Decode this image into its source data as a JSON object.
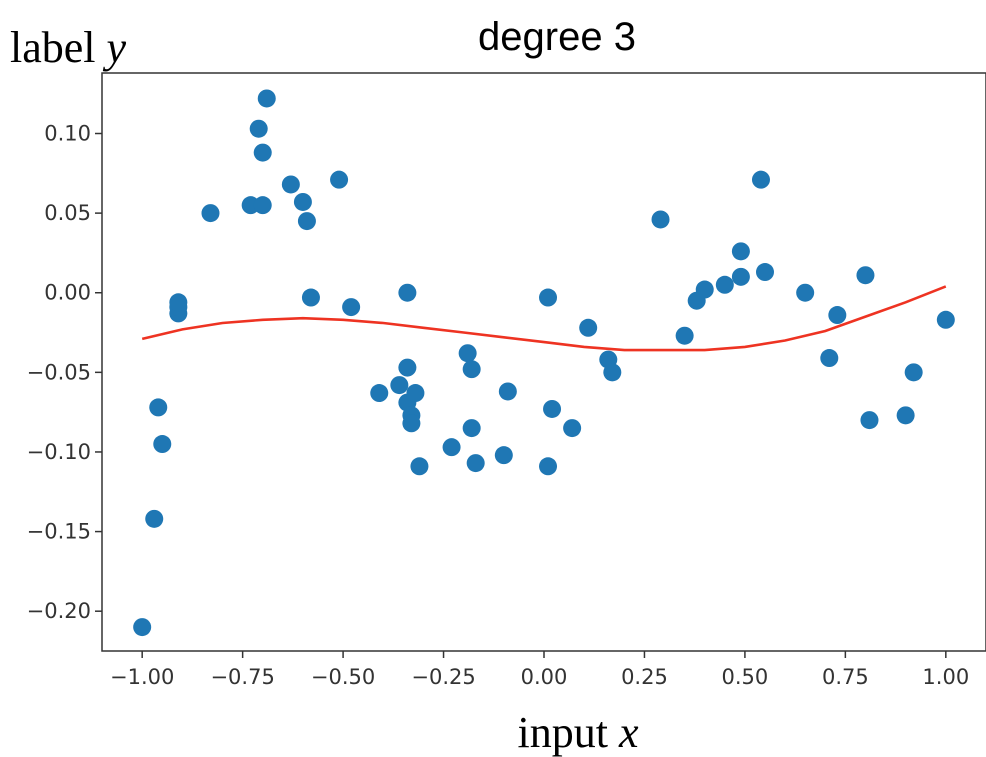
{
  "chart_data": {
    "type": "scatter",
    "title": "degree 3",
    "ylabel": {
      "prefix": "label ",
      "var": "y"
    },
    "xlabel": {
      "prefix": "input ",
      "var": "x"
    },
    "xlim": [
      -1.1,
      1.1
    ],
    "ylim": [
      -0.225,
      0.138
    ],
    "x_ticks": [
      -1.0,
      -0.75,
      -0.5,
      -0.25,
      0.0,
      0.25,
      0.5,
      0.75,
      1.0
    ],
    "x_tick_labels": [
      "−1.00",
      "−0.75",
      "−0.50",
      "−0.25",
      "0.00",
      "0.25",
      "0.50",
      "0.75",
      "1.00"
    ],
    "y_ticks": [
      0.1,
      0.05,
      0.0,
      -0.05,
      -0.1,
      -0.15,
      -0.2
    ],
    "y_tick_labels": [
      "0.10",
      "0.05",
      "0.00",
      "−0.05",
      "−0.10",
      "−0.15",
      "−0.20"
    ],
    "grid": false,
    "scatter_color": "#1f77b4",
    "fit_color": "#ee3322",
    "points": [
      [
        -1.0,
        -0.21
      ],
      [
        -0.97,
        -0.142
      ],
      [
        -0.96,
        -0.072
      ],
      [
        -0.95,
        -0.095
      ],
      [
        -0.91,
        -0.013
      ],
      [
        -0.91,
        -0.009
      ],
      [
        -0.91,
        -0.006
      ],
      [
        -0.83,
        0.05
      ],
      [
        -0.73,
        0.055
      ],
      [
        -0.71,
        0.103
      ],
      [
        -0.7,
        0.088
      ],
      [
        -0.7,
        0.055
      ],
      [
        -0.69,
        0.122
      ],
      [
        -0.63,
        0.068
      ],
      [
        -0.6,
        0.057
      ],
      [
        -0.59,
        0.045
      ],
      [
        -0.58,
        -0.003
      ],
      [
        -0.51,
        0.071
      ],
      [
        -0.48,
        -0.009
      ],
      [
        -0.41,
        -0.063
      ],
      [
        -0.36,
        -0.058
      ],
      [
        -0.34,
        0.0
      ],
      [
        -0.34,
        -0.069
      ],
      [
        -0.34,
        -0.047
      ],
      [
        -0.33,
        -0.077
      ],
      [
        -0.33,
        -0.082
      ],
      [
        -0.32,
        -0.063
      ],
      [
        -0.31,
        -0.109
      ],
      [
        -0.23,
        -0.097
      ],
      [
        -0.19,
        -0.038
      ],
      [
        -0.18,
        -0.048
      ],
      [
        -0.18,
        -0.085
      ],
      [
        -0.17,
        -0.107
      ],
      [
        -0.1,
        -0.102
      ],
      [
        -0.09,
        -0.062
      ],
      [
        0.01,
        -0.003
      ],
      [
        0.01,
        -0.109
      ],
      [
        0.02,
        -0.073
      ],
      [
        0.07,
        -0.085
      ],
      [
        0.11,
        -0.022
      ],
      [
        0.16,
        -0.042
      ],
      [
        0.17,
        -0.05
      ],
      [
        0.29,
        0.046
      ],
      [
        0.35,
        -0.027
      ],
      [
        0.38,
        -0.005
      ],
      [
        0.4,
        0.002
      ],
      [
        0.45,
        0.005
      ],
      [
        0.49,
        0.01
      ],
      [
        0.49,
        0.026
      ],
      [
        0.54,
        0.071
      ],
      [
        0.55,
        0.013
      ],
      [
        0.65,
        0.0
      ],
      [
        0.71,
        -0.041
      ],
      [
        0.73,
        -0.014
      ],
      [
        0.8,
        0.011
      ],
      [
        0.81,
        -0.08
      ],
      [
        0.9,
        -0.077
      ],
      [
        0.92,
        -0.05
      ],
      [
        1.0,
        -0.017
      ]
    ],
    "fit_curve": {
      "degree": 3,
      "x": [
        -1.0,
        -0.9,
        -0.8,
        -0.7,
        -0.6,
        -0.5,
        -0.4,
        -0.3,
        -0.2,
        -0.1,
        0.0,
        0.1,
        0.2,
        0.3,
        0.4,
        0.5,
        0.6,
        0.7,
        0.8,
        0.9,
        1.0
      ],
      "y": [
        -0.029,
        -0.023,
        -0.019,
        -0.017,
        -0.016,
        -0.017,
        -0.019,
        -0.022,
        -0.025,
        -0.028,
        -0.031,
        -0.034,
        -0.036,
        -0.036,
        -0.036,
        -0.034,
        -0.03,
        -0.024,
        -0.015,
        -0.006,
        0.004
      ]
    }
  }
}
